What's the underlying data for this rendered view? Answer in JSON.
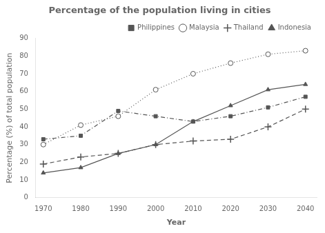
{
  "chart_data": {
    "type": "line",
    "title": "Percentage of the population living in cities",
    "x_label": "Year",
    "y_label": "Percentage (%) of total population",
    "x": [
      1970,
      1980,
      1990,
      2000,
      2010,
      2020,
      2030,
      2040
    ],
    "series": [
      {
        "name": "Philippines",
        "color": "#555555",
        "marker": "square",
        "line_style": "dashdot",
        "values": [
          33,
          35,
          49,
          46,
          43,
          46,
          51,
          57
        ]
      },
      {
        "name": "Malaysia",
        "color": "#555555",
        "marker": "open_circle",
        "line_style": "dotted",
        "values": [
          30,
          41,
          46,
          61,
          70,
          76,
          81,
          83
        ]
      },
      {
        "name": "Thailand",
        "color": "#555555",
        "marker": "plus",
        "line_style": "dashed",
        "values": [
          19,
          23,
          25,
          30,
          32,
          33,
          40,
          50
        ]
      },
      {
        "name": "Indonesia",
        "color": "#555555",
        "marker": "triangle",
        "line_style": "solid",
        "values": [
          14,
          17,
          25,
          30,
          43,
          52,
          61,
          64
        ]
      }
    ],
    "xlim": [
      1968,
      2043
    ],
    "xticks": [
      1970,
      1980,
      1990,
      2000,
      2010,
      2020,
      2030,
      2040
    ],
    "ylim": [
      0,
      90
    ],
    "yticks": [
      0,
      10,
      20,
      30,
      40,
      50,
      60,
      70,
      80,
      90
    ],
    "grid": false,
    "legend": "upper right"
  }
}
